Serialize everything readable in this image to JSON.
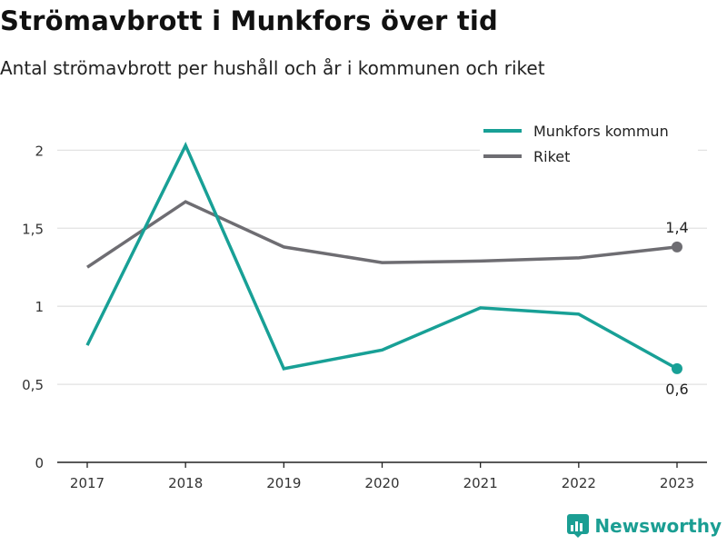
{
  "header": {
    "title": "Strömavbrott i Munkfors över tid",
    "subtitle": "Antal strömavbrott per hushåll och år i kommunen och riket"
  },
  "brand": {
    "name": "Newsworthy",
    "color": "#1b9e93",
    "icon": "bar-chart-icon"
  },
  "chart_data": {
    "type": "line",
    "categories": [
      "2017",
      "2018",
      "2019",
      "2020",
      "2021",
      "2022",
      "2023"
    ],
    "ylim": [
      0,
      2.2
    ],
    "yticks": [
      "0",
      "0,5",
      "1",
      "1,5",
      "2"
    ],
    "ytick_values": [
      0,
      0.5,
      1,
      1.5,
      2
    ],
    "grid": true,
    "legend_position": "top-right",
    "series": [
      {
        "name": "Munkfors kommun",
        "color": "#18a096",
        "values": [
          0.75,
          2.03,
          0.6,
          0.72,
          0.99,
          0.95,
          0.6
        ],
        "end_label": "0,6"
      },
      {
        "name": "Riket",
        "color": "#6e6d72",
        "values": [
          1.25,
          1.67,
          1.38,
          1.28,
          1.29,
          1.31,
          1.38
        ],
        "end_label": "1,4"
      }
    ]
  }
}
